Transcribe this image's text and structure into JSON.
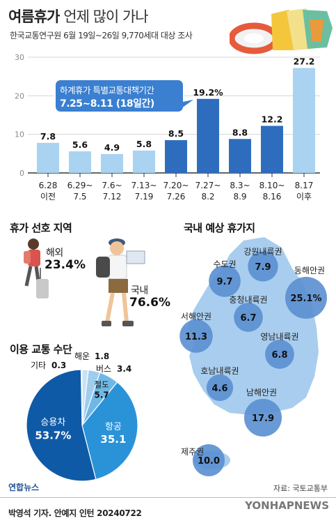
{
  "title": {
    "bold": "여름휴가",
    "light": "언제 많이 가나"
  },
  "subtitle": "한국교통연구원 6월 19일~26일 9,770세대 대상 조사",
  "callout": {
    "line1": "하계휴가 특별교통대책기간",
    "line2": "7.25~8.11 (18일간)"
  },
  "chart_data": [
    {
      "type": "bar",
      "title": "",
      "categories": [
        [
          "6.28",
          "이전"
        ],
        [
          "6.29~",
          "7.5"
        ],
        [
          "7.6~",
          "7.12"
        ],
        [
          "7.13~",
          "7.19"
        ],
        [
          "7.20~",
          "7.26"
        ],
        [
          "7.27~",
          "8.2"
        ],
        [
          "8.3~",
          "8.9"
        ],
        [
          "8.10~",
          "8.16"
        ],
        [
          "8.17",
          "이후"
        ]
      ],
      "values": [
        7.8,
        5.6,
        4.9,
        5.8,
        8.5,
        19.2,
        8.8,
        12.2,
        27.2
      ],
      "value_labels": [
        "7.8",
        "5.6",
        "4.9",
        "5.8",
        "8.5",
        "19.2%",
        "8.8",
        "12.2",
        "27.2"
      ],
      "bar_colors": [
        "#a9d3f0",
        "#a9d3f0",
        "#a9d3f0",
        "#a9d3f0",
        "#2e6dbd",
        "#2e6dbd",
        "#2e6dbd",
        "#2e6dbd",
        "#a9d3f0"
      ],
      "yticks": [
        "0",
        "10",
        "20",
        "30"
      ],
      "ylim": [
        0,
        30
      ],
      "xlabel": "",
      "ylabel": ""
    },
    {
      "type": "pie",
      "title": "휴가 선호 지역",
      "labels": [
        "해외",
        "국내"
      ],
      "values": [
        23.4,
        76.6
      ],
      "value_labels": [
        "23.4%",
        "76.6%"
      ]
    },
    {
      "type": "pie",
      "title": "이용 교통 수단",
      "labels": [
        "승용차",
        "항공",
        "철도",
        "버스",
        "해운",
        "기타"
      ],
      "values": [
        53.7,
        35.1,
        5.7,
        3.4,
        1.8,
        0.3
      ],
      "value_labels": [
        "53.7%",
        "35.1",
        "5.7",
        "3.4",
        "1.8",
        "0.3"
      ],
      "colors": [
        "#0f5aa6",
        "#2a93d8",
        "#6fb8e6",
        "#9ecdee",
        "#c7e2f5",
        "#e3f0fa"
      ]
    },
    {
      "type": "map",
      "title": "국내 예상 휴가지",
      "regions": [
        {
          "name": "강원내륙권",
          "value": 7.9
        },
        {
          "name": "수도권",
          "value": 9.7
        },
        {
          "name": "동해안권",
          "value": 25.1
        },
        {
          "name": "충청내륙권",
          "value": 6.7
        },
        {
          "name": "서해안권",
          "value": 11.3
        },
        {
          "name": "영남내륙권",
          "value": 6.8
        },
        {
          "name": "호남내륙권",
          "value": 4.6
        },
        {
          "name": "남해안권",
          "value": 17.9
        },
        {
          "name": "제주권",
          "value": 10.0
        }
      ],
      "value_labels": [
        "7.9",
        "9.7",
        "25.1%",
        "6.7",
        "11.3",
        "6.8",
        "4.6",
        "17.9",
        "10.0"
      ]
    }
  ],
  "source": "자료: 국토교통부",
  "logo": "연합뉴스",
  "credit": "박영석 기자. 안예지 인턴  20240722",
  "watermark": "YONHAPNEWS",
  "colors": {
    "accent": "#2e6dbd",
    "light": "#a9d3f0",
    "map": "#a8cdee",
    "bubble": "#5a8fd0"
  }
}
